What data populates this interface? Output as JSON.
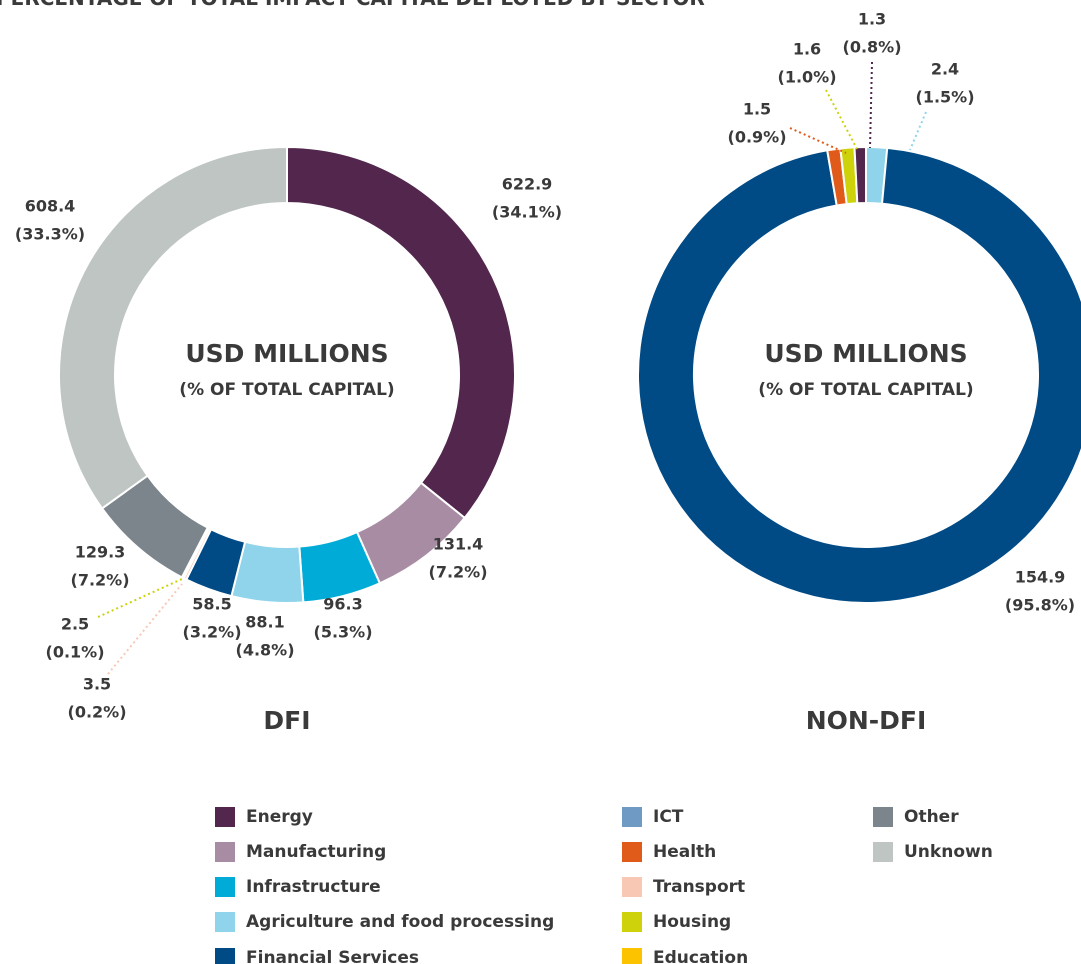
{
  "title": "PERCENTAGE OF TOTAL IMPACT CAPITAL DEPLOYED BY SECTOR",
  "chart_data": [
    {
      "type": "pie",
      "title": "DFI",
      "center_title": "USD MILLIONS",
      "center_subtitle": "(% OF TOTAL CAPITAL)",
      "categories": [
        "Energy",
        "Manufacturing",
        "Infrastructure",
        "Agriculture and food processing",
        "Financial Services",
        "Transport",
        "Housing",
        "Other",
        "Unknown"
      ],
      "values": [
        622.9,
        131.4,
        96.3,
        88.1,
        58.5,
        3.5,
        2.5,
        129.3,
        608.4
      ],
      "percent_labels": [
        "(34.1%)",
        "(7.2%)",
        "(5.3%)",
        "(4.8%)",
        "(3.2%)",
        "(0.2%)",
        "(0.1%)",
        "(7.2%)",
        "(33.3%)"
      ],
      "colors": [
        "#52264d",
        "#a88ca3",
        "#00acd7",
        "#8fd4ea",
        "#004a86",
        "#f8c8b4",
        "#cdd20a",
        "#7c858c",
        "#bec5c3"
      ]
    },
    {
      "type": "pie",
      "title": "NON-DFI",
      "center_title": "USD MILLIONS",
      "center_subtitle": "(% OF TOTAL CAPITAL)",
      "categories": [
        "Agriculture and food processing",
        "Financial Services",
        "Health",
        "Housing",
        "Energy"
      ],
      "values": [
        2.4,
        154.9,
        1.5,
        1.6,
        1.3
      ],
      "percent_labels": [
        "(1.5%)",
        "(95.8%)",
        "(0.9%)",
        "(1.0%)",
        "(0.8%)"
      ],
      "colors": [
        "#8fd4ea",
        "#004a86",
        "#e05a1a",
        "#cdd20a",
        "#52264d"
      ]
    }
  ],
  "legend": [
    {
      "name": "Energy",
      "color": "#52264d"
    },
    {
      "name": "Manufacturing",
      "color": "#a88ca3"
    },
    {
      "name": "Infrastructure",
      "color": "#00acd7"
    },
    {
      "name": "Agriculture and food processing",
      "color": "#8fd4ea"
    },
    {
      "name": "Financial Services",
      "color": "#004a86"
    },
    {
      "name": "ICT",
      "color": "#6f9ac4"
    },
    {
      "name": "Health",
      "color": "#e05a1a"
    },
    {
      "name": "Transport",
      "color": "#f8c8b4"
    },
    {
      "name": "Housing",
      "color": "#cdd20a"
    },
    {
      "name": "Education",
      "color": "#fcc400"
    },
    {
      "name": "Other",
      "color": "#7c858c"
    },
    {
      "name": "Unknown",
      "color": "#bec5c3"
    }
  ]
}
